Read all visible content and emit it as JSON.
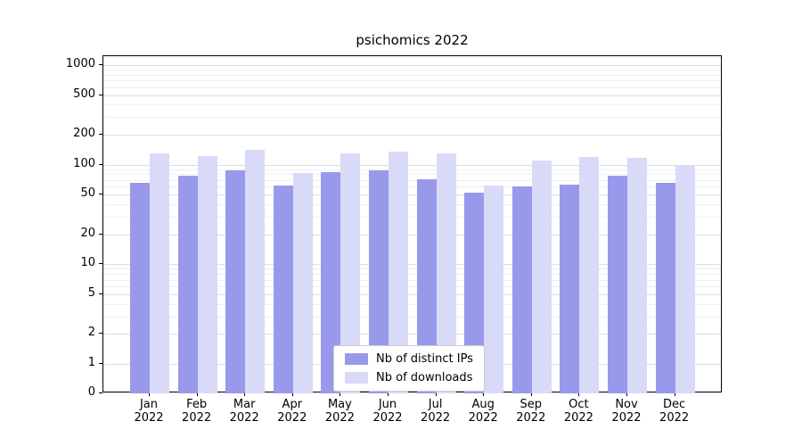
{
  "figure": {
    "title": "psichomics 2022"
  },
  "chart_data": {
    "type": "bar",
    "title": "psichomics 2022",
    "scale": "log",
    "grid": true,
    "legend_position": "lower-center",
    "categories": [
      "Jan",
      "Feb",
      "Mar",
      "Apr",
      "May",
      "Jun",
      "Jul",
      "Aug",
      "Sep",
      "Oct",
      "Nov",
      "Dec"
    ],
    "x_year": "2022",
    "series": [
      {
        "name": "Nb of distinct IPs",
        "color": "#9999ec",
        "values": [
          65,
          78,
          88,
          62,
          84,
          88,
          72,
          52,
          60,
          63,
          78,
          65
        ]
      },
      {
        "name": "Nb of downloads",
        "color": "#d9d9f8",
        "values": [
          130,
          122,
          140,
          83,
          130,
          135,
          130,
          62,
          110,
          120,
          117,
          100
        ]
      }
    ],
    "y_ticks": [
      1000,
      500,
      200,
      100,
      50,
      20,
      10,
      5,
      2,
      1,
      0
    ],
    "minor_gridlines": [
      3,
      4,
      6,
      7,
      8,
      9,
      30,
      40,
      60,
      70,
      80,
      90,
      300,
      400,
      600,
      700,
      800,
      900
    ],
    "ylim": [
      0,
      1200
    ]
  }
}
